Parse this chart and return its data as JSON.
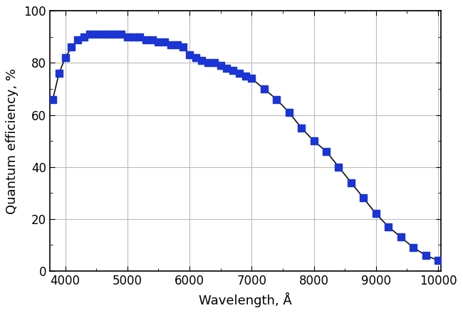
{
  "wavelength": [
    3800,
    3900,
    4000,
    4100,
    4200,
    4300,
    4400,
    4500,
    4600,
    4700,
    4800,
    4900,
    5000,
    5100,
    5200,
    5300,
    5400,
    5500,
    5600,
    5700,
    5800,
    5900,
    6000,
    6100,
    6200,
    6300,
    6400,
    6500,
    6600,
    6700,
    6800,
    6900,
    7000,
    7200,
    7400,
    7600,
    7800,
    8000,
    8200,
    8400,
    8600,
    8800,
    9000,
    9200,
    9400,
    9600,
    9800,
    10000
  ],
  "qe": [
    66,
    76,
    82,
    86,
    89,
    90,
    91,
    91,
    91,
    91,
    91,
    91,
    90,
    90,
    90,
    89,
    89,
    88,
    88,
    87,
    87,
    86,
    83,
    82,
    81,
    80,
    80,
    79,
    78,
    77,
    76,
    75,
    74,
    70,
    66,
    61,
    55,
    50,
    46,
    40,
    34,
    28,
    22,
    17,
    13,
    9,
    6,
    4
  ],
  "marker_color": "#1a35d4",
  "line_color": "#111111",
  "xlabel": "Wavelength, Å",
  "ylabel": "Quantum efficiency, %",
  "xlim": [
    3750,
    10050
  ],
  "ylim": [
    0,
    100
  ],
  "xticks": [
    4000,
    5000,
    6000,
    7000,
    8000,
    9000,
    10000
  ],
  "yticks": [
    0,
    20,
    40,
    60,
    80,
    100
  ],
  "grid_color": "#bbbbbb",
  "bg_color": "#ffffff",
  "marker_size": 6.5,
  "linewidth": 1.2,
  "fig_width": 6.5,
  "fig_height": 4.4,
  "dpi": 100
}
